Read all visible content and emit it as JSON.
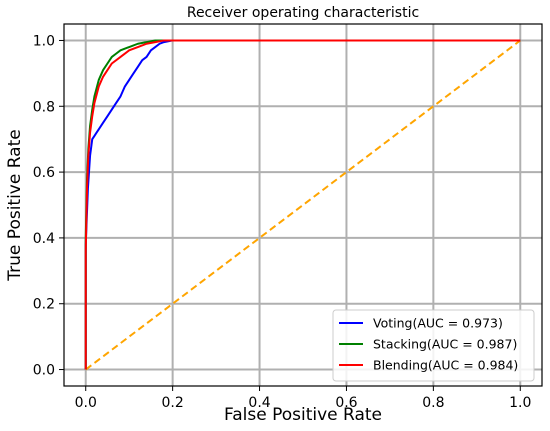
{
  "chart_data": {
    "type": "line",
    "title": "Receiver operating characteristic",
    "xlabel": "False Positive Rate",
    "ylabel": "True Positive Rate",
    "xlim": [
      -0.05,
      1.05
    ],
    "ylim": [
      -0.05,
      1.05
    ],
    "xticks": [
      "0.0",
      "0.2",
      "0.4",
      "0.6",
      "0.8",
      "1.0"
    ],
    "yticks": [
      "0.0",
      "0.2",
      "0.4",
      "0.6",
      "0.8",
      "1.0"
    ],
    "grid": true,
    "legend_position": "lower-right",
    "series": [
      {
        "name": "Voting(AUC = 0.973)",
        "color": "#0000ff",
        "x": [
          0.0,
          0.0,
          0.005,
          0.01,
          0.015,
          0.02,
          0.025,
          0.03,
          0.04,
          0.05,
          0.06,
          0.07,
          0.08,
          0.09,
          0.1,
          0.11,
          0.12,
          0.13,
          0.14,
          0.15,
          0.16,
          0.17,
          0.18,
          0.2,
          0.3,
          0.5,
          1.0
        ],
        "y": [
          0.0,
          0.38,
          0.55,
          0.65,
          0.7,
          0.71,
          0.72,
          0.73,
          0.75,
          0.77,
          0.79,
          0.81,
          0.83,
          0.86,
          0.88,
          0.9,
          0.92,
          0.94,
          0.95,
          0.97,
          0.98,
          0.99,
          0.995,
          1.0,
          1.0,
          1.0,
          1.0
        ]
      },
      {
        "name": "Stacking(AUC = 0.987)",
        "color": "#008000",
        "x": [
          0.0,
          0.0,
          0.003,
          0.006,
          0.01,
          0.015,
          0.02,
          0.03,
          0.04,
          0.05,
          0.06,
          0.07,
          0.08,
          0.1,
          0.12,
          0.14,
          0.16,
          0.18,
          0.2,
          0.5,
          1.0
        ],
        "y": [
          0.0,
          0.4,
          0.58,
          0.67,
          0.74,
          0.79,
          0.83,
          0.88,
          0.91,
          0.93,
          0.95,
          0.96,
          0.97,
          0.98,
          0.99,
          0.995,
          1.0,
          1.0,
          1.0,
          1.0,
          1.0
        ]
      },
      {
        "name": "Blending(AUC = 0.984)",
        "color": "#ff0000",
        "x": [
          0.0,
          0.0,
          0.003,
          0.006,
          0.01,
          0.015,
          0.02,
          0.03,
          0.04,
          0.05,
          0.06,
          0.08,
          0.1,
          0.12,
          0.14,
          0.16,
          0.18,
          0.2,
          0.5,
          1.0
        ],
        "y": [
          0.0,
          0.36,
          0.55,
          0.65,
          0.72,
          0.77,
          0.81,
          0.86,
          0.89,
          0.91,
          0.93,
          0.95,
          0.97,
          0.98,
          0.99,
          0.995,
          1.0,
          1.0,
          1.0,
          1.0
        ]
      },
      {
        "name": "",
        "color": "#ffa500",
        "dashed": true,
        "x": [
          0.0,
          1.0
        ],
        "y": [
          0.0,
          1.0
        ]
      }
    ]
  }
}
